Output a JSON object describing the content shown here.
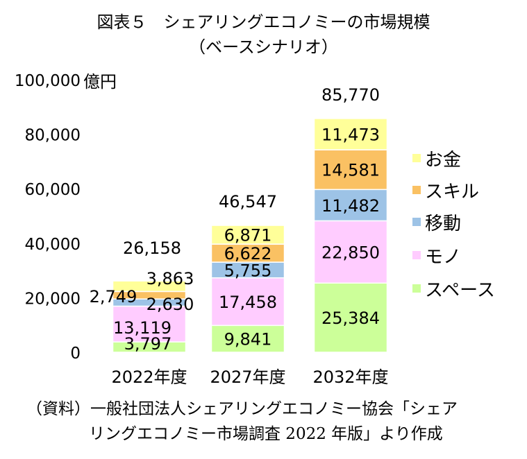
{
  "title": "図表５　シェアリングエコノミーの市場規模",
  "subtitle": "（ベースシナリオ）",
  "source_line1": "（資料）一般社団法人シェアリングエコノミー協会「シェア",
  "source_line2": "リングエコノミー市場調査 2022 年版」より作成",
  "colors": {
    "お金": "#FFFF99",
    "スキル": "#FAC163",
    "移動": "#9DC3E6",
    "モノ": "#FFCCFF",
    "スペース": "#CCFF99"
  },
  "chart_data": {
    "type": "bar",
    "stacked": true,
    "categories": [
      "2022年度",
      "2027年度",
      "2032年度"
    ],
    "series": [
      {
        "name": "スペース",
        "values": [
          3797,
          9841,
          25384
        ]
      },
      {
        "name": "モノ",
        "values": [
          13119,
          17458,
          22850
        ]
      },
      {
        "name": "移動",
        "values": [
          2630,
          5755,
          11482
        ]
      },
      {
        "name": "スキル",
        "values": [
          2749,
          6622,
          14581
        ]
      },
      {
        "name": "お金",
        "values": [
          3863,
          6871,
          11473
        ]
      }
    ],
    "totals": [
      26158,
      46547,
      85770
    ],
    "ylabel": "億円",
    "ylim": [
      0,
      100000
    ],
    "yticks": [
      0,
      20000,
      40000,
      60000,
      80000,
      100000
    ],
    "ytick_labels": [
      "0",
      "20,000",
      "40,000",
      "60,000",
      "80,000",
      "100,000"
    ],
    "segment_labels": [
      [
        "3,797",
        "13,119",
        "2,630",
        "2,749",
        "3,863"
      ],
      [
        "9,841",
        "17,458",
        "5,755",
        "6,622",
        "6,871"
      ],
      [
        "25,384",
        "22,850",
        "11,482",
        "14,581",
        "11,473"
      ]
    ],
    "total_labels": [
      "26,158",
      "46,547",
      "85,770"
    ],
    "legend_position": "right",
    "legend_order": [
      "お金",
      "スキル",
      "移動",
      "モノ",
      "スペース"
    ],
    "grid": false
  }
}
